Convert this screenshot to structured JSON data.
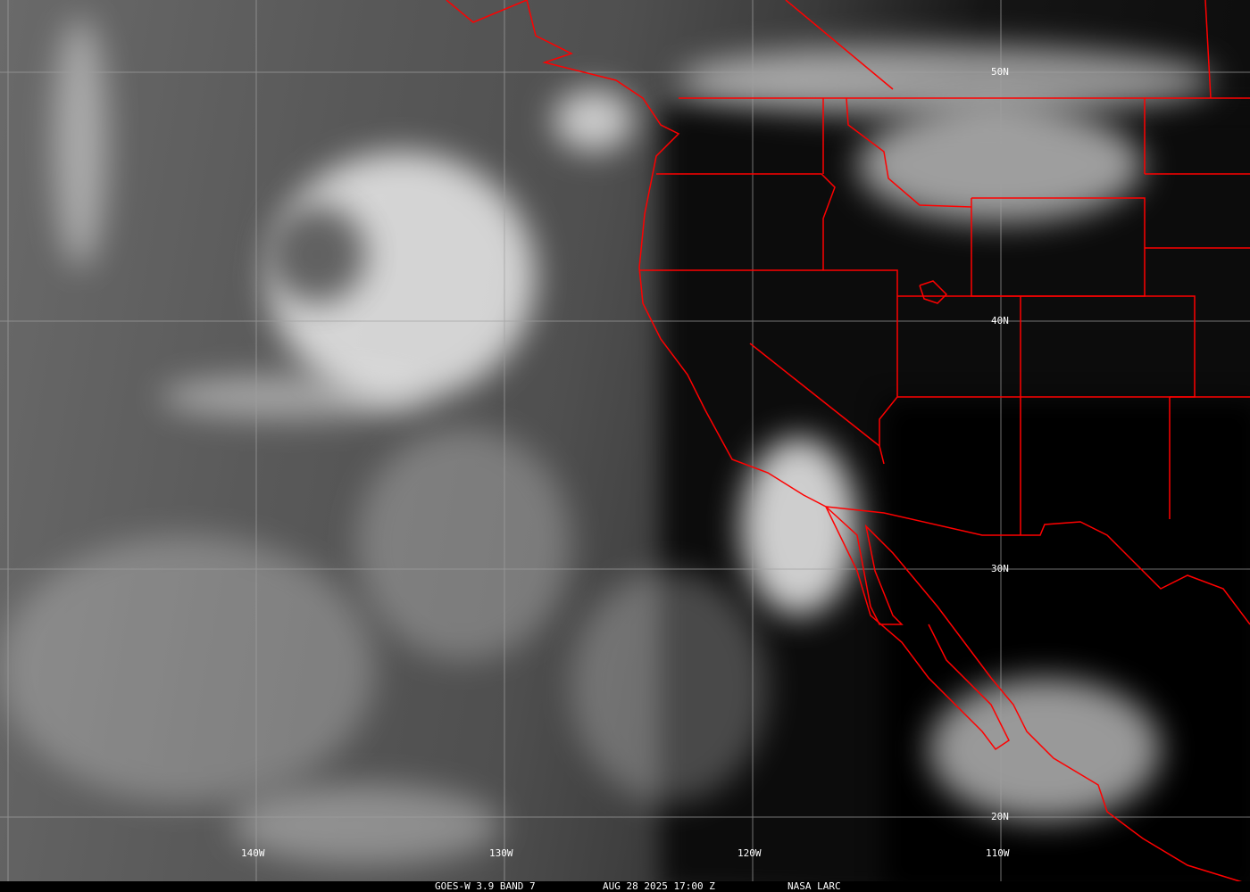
{
  "caption": {
    "satellite": "GOES-W 3.9 BAND 7",
    "datetime": "AUG 28 2025 17:00 Z",
    "source": "NASA LARC"
  },
  "grid_labels": {
    "lat": [
      "50N",
      "40N",
      "30N",
      "20N"
    ],
    "lon": [
      "140W",
      "130W",
      "120W",
      "110W"
    ]
  },
  "colors": {
    "boundaries": "#ff0000",
    "grid": "#a0a0a0",
    "caption_bg": "#000000",
    "caption_text": "#ffffff"
  }
}
